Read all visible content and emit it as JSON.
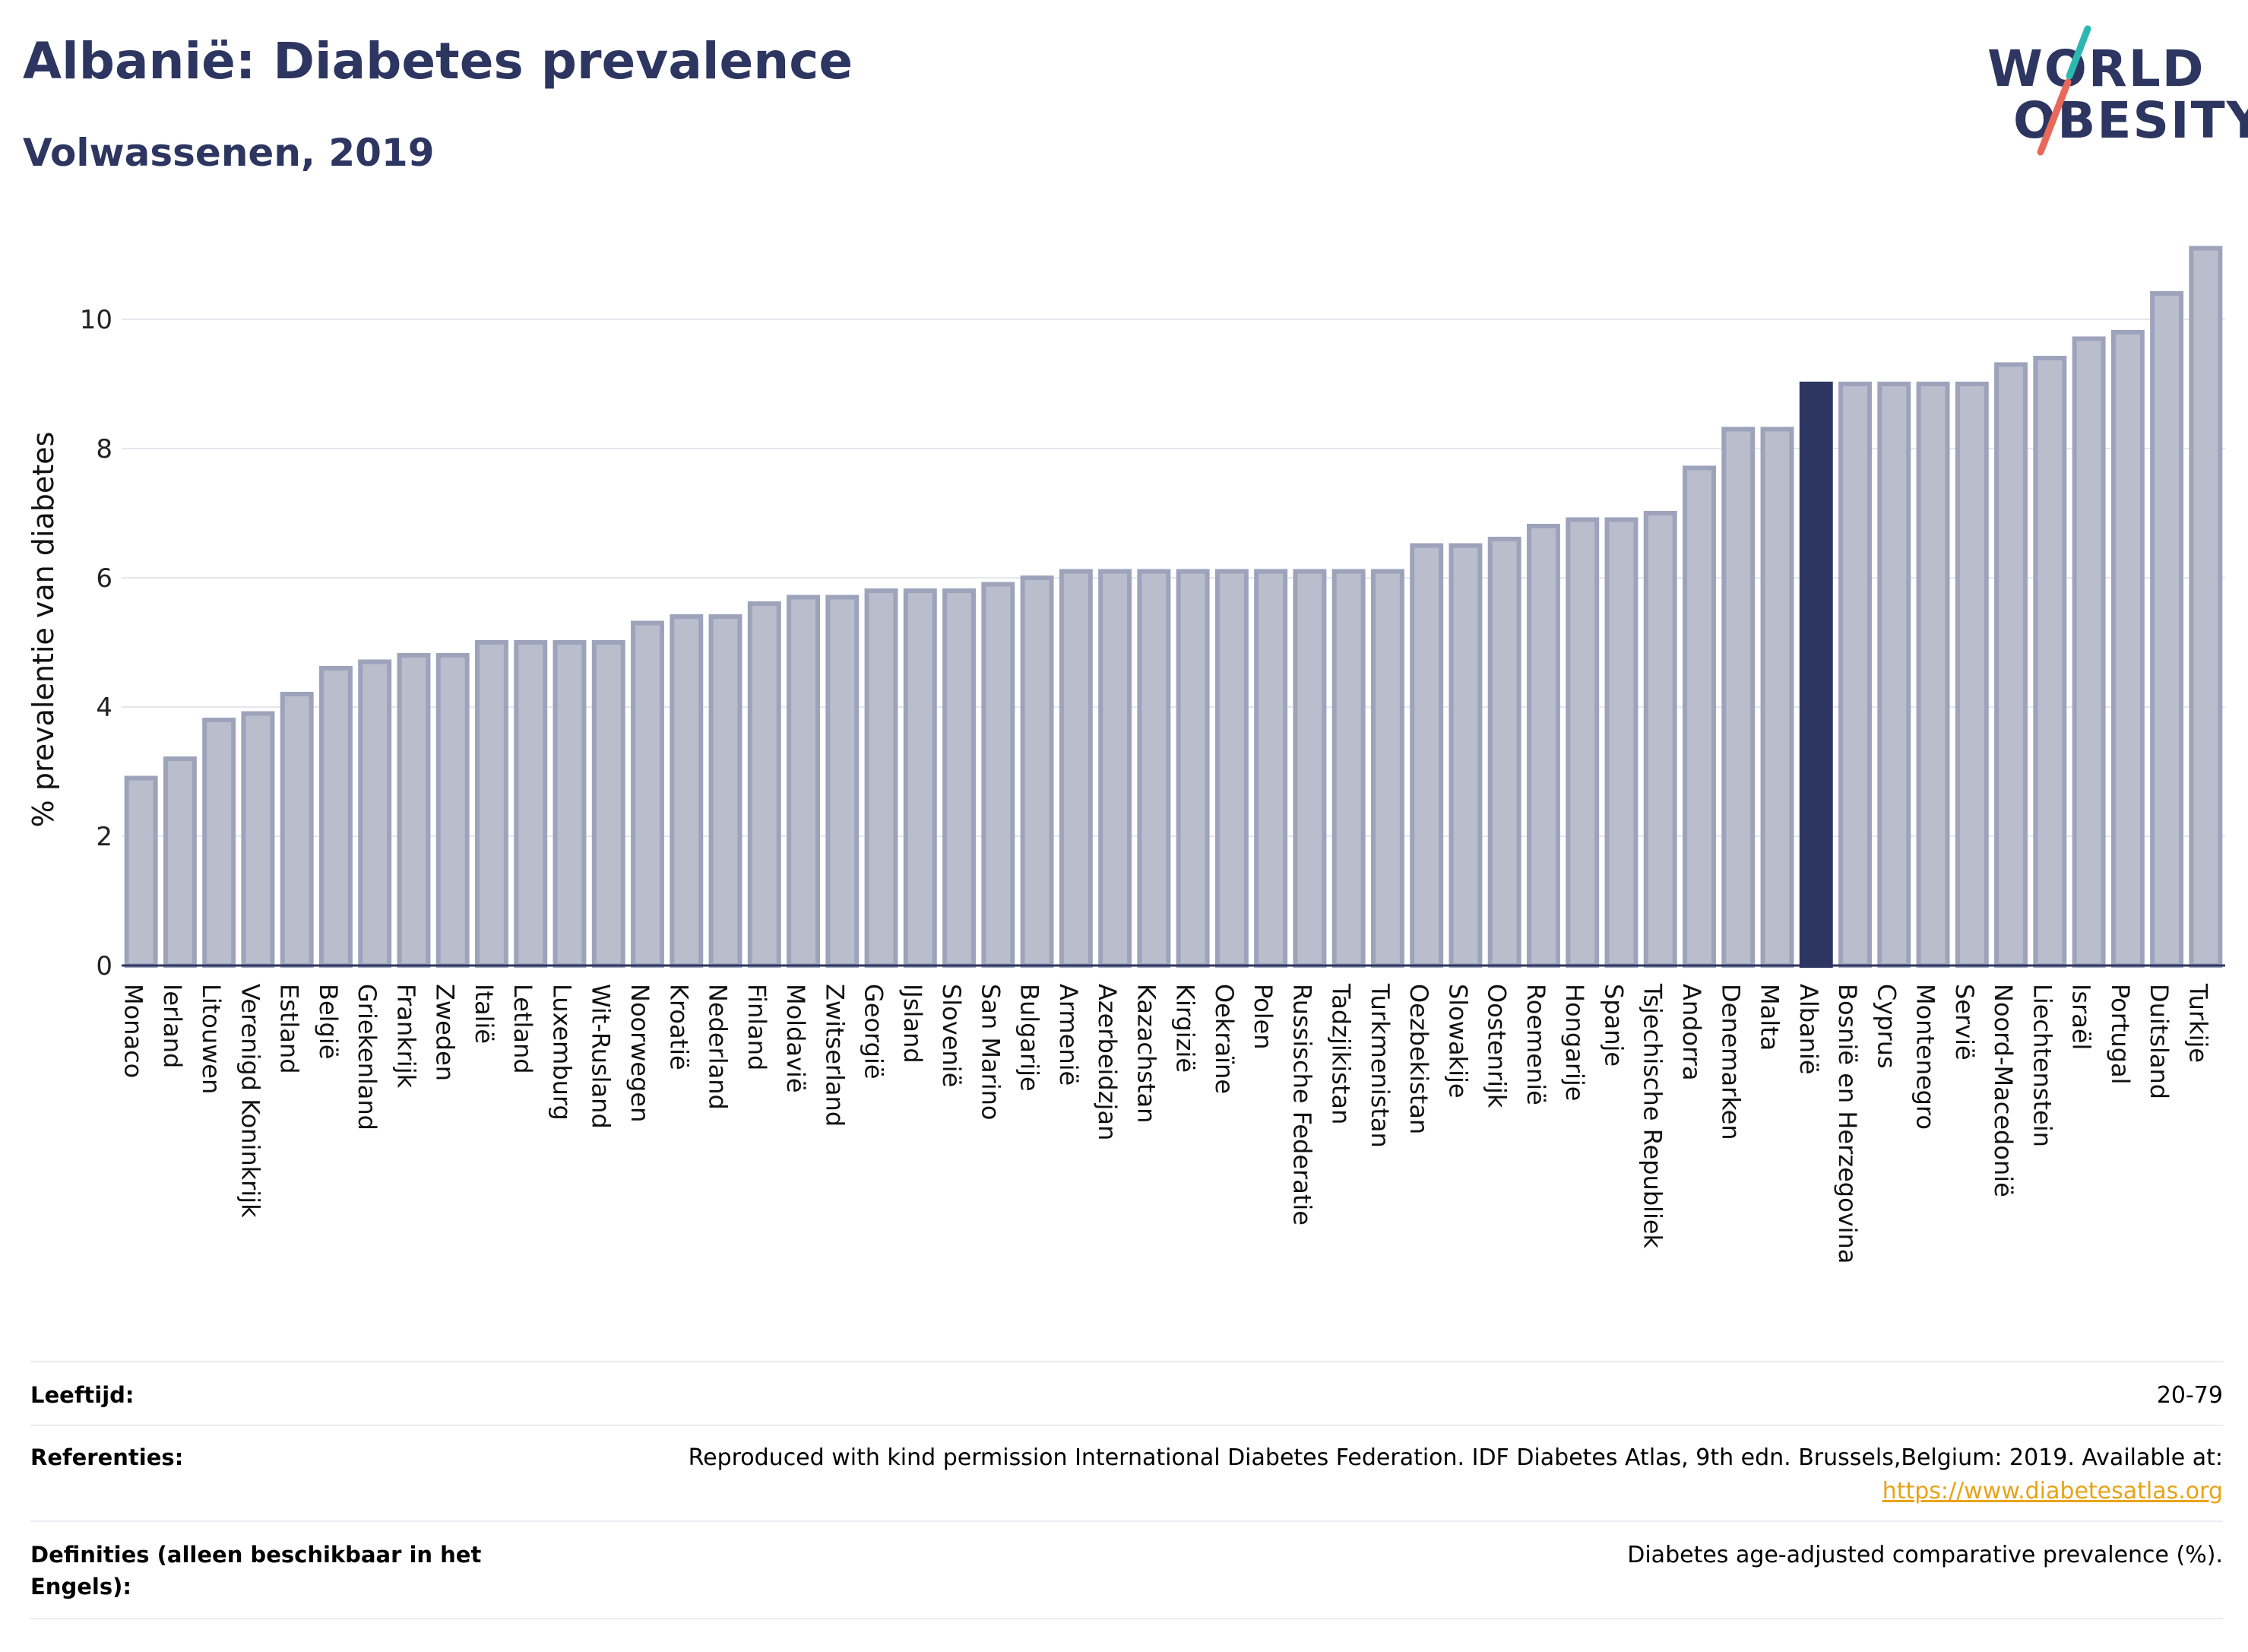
{
  "header": {
    "title": "Albanië: Diabetes prevalence",
    "subtitle": "Volwassenen, 2019"
  },
  "logo": {
    "line1": "WORLD",
    "line2": "OBESITY",
    "slash_colors": [
      "#2cb8b0",
      "#e8685a"
    ]
  },
  "chart_data": {
    "type": "bar",
    "ylabel": "% prevalentie van diabetes",
    "xlabel": "",
    "ylim": [
      0,
      11.5
    ],
    "yticks": [
      0,
      2,
      4,
      6,
      8,
      10
    ],
    "grid": true,
    "highlight": "Albanië",
    "colors": {
      "bar": "#b9bdcc",
      "bar_stroke": "#9da3bb",
      "highlight": "#2d3561",
      "axis": "#2d3561",
      "grid": "#e5e7ee"
    },
    "categories": [
      "Monaco",
      "Ierland",
      "Litouwen",
      "Verenigd Koninkrijk",
      "Estland",
      "België",
      "Griekenland",
      "Frankrijk",
      "Zweden",
      "Italië",
      "Letland",
      "Luxemburg",
      "Wit-Rusland",
      "Noorwegen",
      "Kroatië",
      "Nederland",
      "Finland",
      "Moldavië",
      "Zwitserland",
      "Georgië",
      "IJsland",
      "Slovenië",
      "San Marino",
      "Bulgarije",
      "Armenië",
      "Azerbeidzjan",
      "Kazachstan",
      "Kirgizië",
      "Oekraïne",
      "Polen",
      "Russische Federatie",
      "Tadzjikistan",
      "Turkmenistan",
      "Oezbekistan",
      "Slowakije",
      "Oostenrijk",
      "Roemenië",
      "Hongarije",
      "Spanje",
      "Tsjechische Republiek",
      "Andorra",
      "Denemarken",
      "Malta",
      "Albanië",
      "Bosnië en Herzegovina",
      "Cyprus",
      "Montenegro",
      "Servië",
      "Noord-Macedonië",
      "Liechtenstein",
      "Israël",
      "Portugal",
      "Duitsland",
      "Turkije"
    ],
    "values": [
      2.9,
      3.2,
      3.8,
      3.9,
      4.2,
      4.6,
      4.7,
      4.8,
      4.8,
      5.0,
      5.0,
      5.0,
      5.0,
      5.3,
      5.4,
      5.4,
      5.6,
      5.7,
      5.7,
      5.8,
      5.8,
      5.8,
      5.9,
      6.0,
      6.1,
      6.1,
      6.1,
      6.1,
      6.1,
      6.1,
      6.1,
      6.1,
      6.1,
      6.5,
      6.5,
      6.6,
      6.8,
      6.9,
      6.9,
      7.0,
      7.7,
      8.3,
      8.3,
      9.0,
      9.0,
      9.0,
      9.0,
      9.0,
      9.3,
      9.4,
      9.7,
      9.8,
      10.4,
      11.1
    ]
  },
  "meta": {
    "age_label": "Leeftijd:",
    "age_value": "20-79",
    "ref_label": "Referenties:",
    "ref_text": "Reproduced with kind permission International Diabetes Federation. IDF Diabetes Atlas, 9th edn. Brussels,Belgium: 2019. Available at:",
    "ref_link": "https://www.diabetesatlas.org",
    "def_label": "Definities (alleen beschikbaar in het Engels):",
    "def_value": "Diabetes age-adjusted comparative prevalence (%)."
  }
}
